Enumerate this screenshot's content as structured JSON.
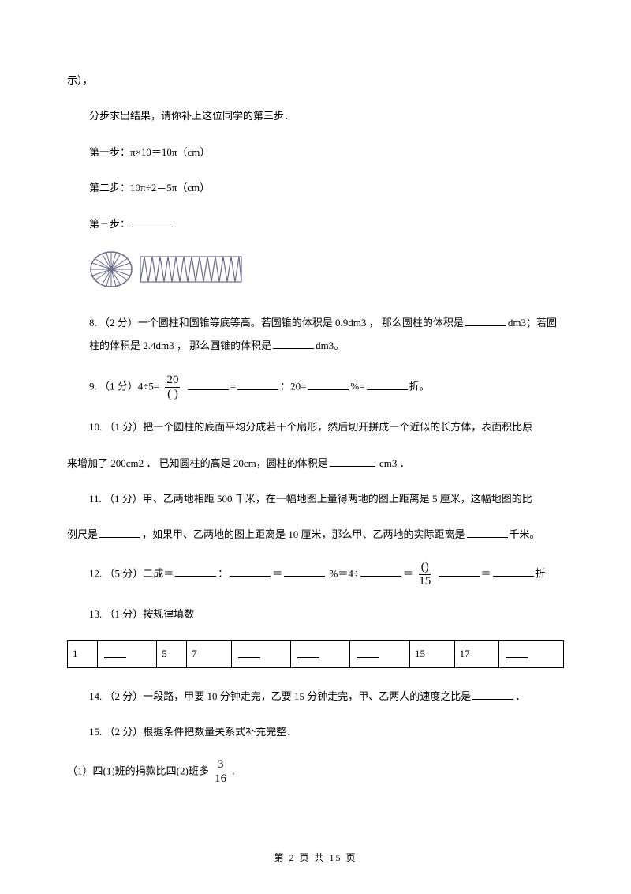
{
  "intro": {
    "line0": "示），",
    "line1": "分步求出结果，请你补上这位同学的第三步．",
    "step1": "第一步：π×10＝10π（cm）",
    "step2": "第二步：10π÷2＝5π（cm）",
    "step3_label": "第三步："
  },
  "figure": {
    "circle_stroke": "#6b6b8a",
    "wave_stroke": "#6b6b8a"
  },
  "q8": {
    "text_a": "8. （2 分）一个圆柱和圆锥等底等高。若圆锥的体积是 0.9dm3 ，  那么圆柱的体积是",
    "text_b": "dm3；若圆柱的体积是 2.4dm3 ，  那么圆锥的体积是",
    "text_c": "dm3。"
  },
  "q9": {
    "prefix": "9. （1 分）4÷5=",
    "frac_num": "20",
    "frac_den": "( )",
    "seg_a": "=",
    "seg_b": "：20=",
    "seg_c": "%=",
    "seg_d": "折。"
  },
  "q10": {
    "line_a": "10.  （1 分）把一个圆柱的底面平均分成若干个扇形，然后切开拼成一个近似的长方体，表面积比原",
    "line_b_a": "来增加了 200cm2 ．  已知圆柱的高是 20cm，圆柱的体积是",
    "line_b_b": " cm3 ．"
  },
  "q11": {
    "line_a": "11.  （1 分）甲、乙两地相距 500 千米，在一幅地图上量得两地的图上距离是 5 厘米，这幅地图的比",
    "line_b_a": "例尺是",
    "line_b_b": "，如果甲、乙两地的图上距离是 10 厘米，那么甲、乙两地的实际距离是",
    "line_b_c": "千米。"
  },
  "q12": {
    "prefix": "12. （5 分）二成＝",
    "seg_colon": "：",
    "seg_eq1": "＝",
    "seg_pct": " %＝4÷",
    "seg_eq2": "＝",
    "frac_num": "()",
    "frac_den": "15",
    "seg_eq3": "＝",
    "seg_end": "折"
  },
  "q13": {
    "text": "13. （1 分）按规律填数",
    "cells": [
      "1",
      "",
      "5",
      "7",
      "",
      "",
      "",
      "15",
      "17",
      ""
    ],
    "widths": [
      "6%",
      "12%",
      "6%",
      "9%",
      "12%",
      "12%",
      "12%",
      "9%",
      "9%",
      "13%"
    ]
  },
  "q14": {
    "text_a": "14. （2 分）一段路，甲要 10 分钟走完，乙要 15 分钟走完，甲、乙两人的速度之比是",
    "text_b": "．"
  },
  "q15": {
    "text": "15. （2 分）根据条件把数量关系式补充完整．",
    "sub_a": "（1）四(1)班的捐款比四(2)班多",
    "frac_num": "3",
    "frac_den": "16",
    "sub_b": " ."
  },
  "footer": "第 2 页 共 15 页"
}
